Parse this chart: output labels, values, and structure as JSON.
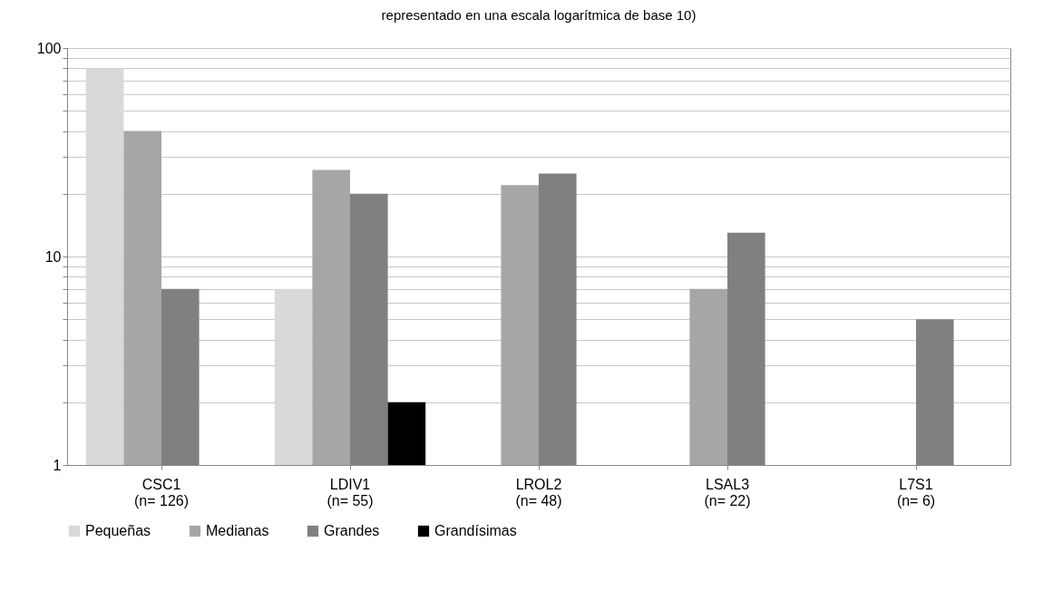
{
  "chart_data": {
    "type": "bar",
    "title": "representado en una escala logarítmica de base 10)",
    "categories": [
      "CSC1\n(n= 126)",
      "LDIV1\n(n= 55)",
      "LROL2\n(n= 48)",
      "LSAL3\n(n= 22)",
      "L7S1\n(n= 6)"
    ],
    "series": [
      {
        "name": "Pequeñas",
        "color": "#d9d9d9",
        "values": [
          80,
          7,
          null,
          null,
          null
        ]
      },
      {
        "name": "Medianas",
        "color": "#a6a6a6",
        "values": [
          40,
          26,
          22,
          7,
          null
        ]
      },
      {
        "name": "Grandes",
        "color": "#808080",
        "values": [
          7,
          20,
          25,
          13,
          5
        ]
      },
      {
        "name": "Grandísimas",
        "color": "#000000",
        "values": [
          null,
          2,
          null,
          null,
          null
        ]
      }
    ],
    "log": true,
    "ylim": [
      1,
      100
    ],
    "yticks": [
      1,
      {
        "value": 2,
        "label": null
      },
      {
        "value": 3,
        "label": null
      },
      {
        "value": 4,
        "label": null
      },
      {
        "value": 5,
        "label": null
      },
      {
        "value": 6,
        "label": null
      },
      {
        "value": 7,
        "label": null
      },
      {
        "value": 8,
        "label": null
      },
      {
        "value": 9,
        "label": null
      },
      10,
      {
        "value": 20,
        "label": null
      },
      {
        "value": 30,
        "label": null
      },
      {
        "value": 40,
        "label": null
      },
      {
        "value": 50,
        "label": null
      },
      {
        "value": 60,
        "label": null
      },
      {
        "value": 70,
        "label": null
      },
      {
        "value": 80,
        "label": null
      },
      {
        "value": 90,
        "label": null
      },
      100
    ],
    "grid": "y",
    "legend": "bottom"
  }
}
